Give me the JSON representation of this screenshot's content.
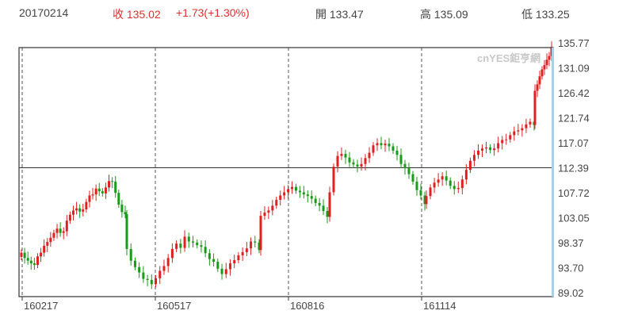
{
  "header": {
    "date": "20170214",
    "close_label": "收",
    "close_value": "135.02",
    "change": "+1.73(+1.30%)",
    "open_label": "開",
    "open_value": "133.47",
    "high_label": "高",
    "high_value": "135.09",
    "low_label": "低",
    "low_value": "133.25"
  },
  "watermark": "cnYES鉅亨網",
  "colors": {
    "up": "#e02020",
    "down": "#1a9a1a",
    "grid": "#555555",
    "frame": "#333333",
    "accent": "#a8d0e6"
  },
  "chart_data": {
    "type": "candlestick",
    "title": "",
    "xlabel": "",
    "ylabel": "",
    "ylim": [
      89.02,
      135.77
    ],
    "y_ticks": [
      "135.77",
      "131.09",
      "126.42",
      "121.74",
      "117.07",
      "112.39",
      "107.72",
      "103.05",
      "98.37",
      "93.70",
      "89.02"
    ],
    "x_ticks": [
      "160217",
      "160517",
      "160816",
      "161114"
    ],
    "reference_line": 112.39,
    "grid": "vertical dashed at x ticks",
    "series": [
      {
        "values": [
          96.5,
          95.5,
          95.0,
          94.5,
          94.2,
          95.8,
          96.5,
          97.8,
          98.5,
          99.3,
          100.2,
          101.0,
          100.2,
          100.5,
          102.5,
          103.6,
          104.4,
          104.8,
          104.2,
          104.6,
          106.0,
          107.2,
          107.4,
          108.5,
          108.0,
          107.6,
          108.7,
          109.9,
          109.8,
          107.7,
          105.5,
          104.1,
          103.7,
          97.2,
          95.0,
          93.8,
          92.8,
          91.6,
          91.4,
          90.6,
          91.7,
          93.1,
          94.0,
          95.5,
          97.2,
          98.2,
          97.4,
          99.5,
          98.6,
          98.4,
          97.9,
          97.6,
          96.4,
          95.3,
          94.8,
          93.5,
          92.5,
          93.4,
          94.5,
          95.1,
          96.0,
          96.6,
          97.3,
          98.6,
          98.4,
          97.0,
          103.4,
          104.0,
          104.4,
          105.3,
          106.4,
          107.2,
          107.8,
          108.4,
          108.8,
          108.1,
          107.8,
          107.4,
          107.1,
          106.6,
          105.8,
          105.3,
          104.3,
          103.2,
          107.8,
          112.6,
          114.6,
          115.0,
          114.3,
          113.4,
          113.0,
          112.6,
          113.1,
          114.2,
          115.2,
          116.6,
          117.0,
          116.6,
          116.9,
          116.4,
          115.6,
          114.8,
          113.1,
          112.3,
          111.2,
          109.8,
          108.2,
          107.2,
          105.6,
          107.1,
          108.7,
          109.6,
          110.2,
          110.8,
          110.0,
          109.0,
          108.4,
          108.6,
          110.2,
          112.0,
          113.7,
          114.8,
          115.6,
          116.0,
          116.2,
          115.7,
          116.0,
          117.0,
          117.6,
          117.7,
          118.5,
          119.2,
          119.4,
          119.8,
          120.5,
          121.0,
          120.4,
          126.8,
          128.0,
          129.5,
          130.8,
          131.6,
          132.6,
          133.3,
          135.0
        ]
      }
    ]
  }
}
